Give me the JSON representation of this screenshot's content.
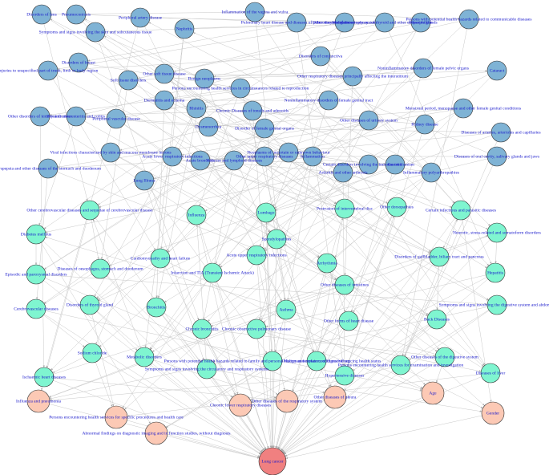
{
  "disease_groups": [
    {
      "color": "#7fb3d5",
      "nodes": [
        "Disorders of lens",
        "Pneumoconiosis",
        "Symptoms and signs involving the skin and subcutaneous tissue",
        "Peripheral artery disease",
        "Nephritis",
        "Inflammation of the vagina and vulva",
        "Pulmonary heart disease and diseases of pulmonary circulation",
        "Other diseases of the urinary system",
        "Malignant neoplasms of thyroid and other endocrine glands",
        "Dipsophilism",
        "Persons with potential health hazards related to communicable diseases",
        "Disorders of breast",
        "Injuries to unspecified part of trunk, limb or body region",
        "Other soft tissue disease",
        "Soft tissue disorders",
        "Benign neoplasms",
        "Persons encountering health services in circumstances related to reproduction",
        "Disorders of conjunctiva",
        "Other respiratory diseases principally affecting the interstitium",
        "Noninflammatory disorders of female pelvic organs",
        "Cataract",
        "Other disorders of kidney and ureter",
        "Noninfective enteritis and colitis",
        "Peripheral vascular disease",
        "Dermatitis and eczema",
        "Rhinitis",
        "Chronic Diseases of tonsils and adenoids",
        "Dysmenorrhea",
        "Disorder of female genital organs",
        "Noninflammatory disorders of female genital tract",
        "Other diseases of urinary system",
        "Kidney disease",
        "Menstrual period, menopause and other female genital conditions",
        "Diseases of arteries, arterioles and capillaries",
        "Viral infections characterized by skin and mucous membrane lesions",
        "Dyspepsia and other diseases of the stomach and duodenum",
        "Lung Illness",
        "Acute lower respiratory infections",
        "Acute bronchitis",
        "Varicose and lymphoid diseases",
        "Other upper respiratory diseases",
        "Neoplasms of uncertain or unknown behaviour",
        "Inflammation",
        "Arthritis and other arthrosis",
        "Certain disorders involving the immune mechanism",
        "Gastritis",
        "Inflammatory polyarthropathies",
        "Diseases of oral cavity, salivary glands and jaws"
      ]
    },
    {
      "color": "#7ff5d0",
      "nodes": [
        "Other cerebrovascular diseases and sequelae of cerebrovascular disease",
        "Influenza",
        "Lumbago",
        "Protrusion of intervertebral disc",
        "Other dorsopathies",
        "Certain infectious and parasitic diseases",
        "Diabetes mellitus",
        "Spondylopathies",
        "Neurotic, stress-related and somatoform disorders",
        "Diseases of oesophagus, stomach and duodenum",
        "Cardiomyopathy and heart failure",
        "Infarction and TIA (Transient Ischemic Attack)",
        "Acute upper respiratory infections",
        "Arrhythmia",
        "Disorders of gallbladder, biliary tract and pancreas",
        "Episodic and paroxysmal disorders",
        "Other diseases of intestines",
        "Hepatitis",
        "Cerebrovascular diseases",
        "Disorders of thyroid gland",
        "Bronchitis",
        "Asthma",
        "Other forms of heart disease",
        "Back Diseases",
        "Symptoms and signs involving the digestive system and abdomen",
        "Chronic bronchitis",
        "Chronic obstructive pulmonary disease",
        "Sodium chloride",
        "Metabolic disorders",
        "Symptoms and signs involving the circulatory and respiratory systems",
        "Persons with potential health hazards related to family and personal history and certain conditions influencing health status",
        "Malignant neoplasms of digestive org",
        "Hypertensive diseases",
        "Persons encountering health services for examination and investigation",
        "Other diseases of the digestive system",
        "Diseases of liver",
        "Ischaemic heart diseases"
      ]
    },
    {
      "color": "#fcc9b5",
      "nodes": [
        "Influenza and pneumonia",
        "Persons encountering health services for specific procedures and health care",
        "Abnormal findings on diagnostic imaging and in function studies, without diagnosis",
        "Chronic lower respiratory diseases",
        "Other diseases of the respiratory system",
        "Other diseases of pleura",
        "Age",
        "Gender"
      ]
    },
    {
      "color": "#f08080",
      "nodes": [
        "Lung cancer"
      ]
    }
  ]
}
